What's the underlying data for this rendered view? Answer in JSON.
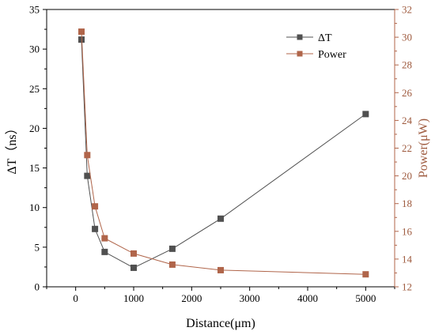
{
  "chart_data": {
    "type": "line",
    "xlabel": "Distance(μm)",
    "ylabel": "ΔT（ns）",
    "ylabel_right": "Power(μW)",
    "xlim": [
      -500,
      5500
    ],
    "ylim": [
      0,
      35
    ],
    "ylim_right": [
      12,
      32
    ],
    "x_ticks": [
      0,
      1000,
      2000,
      3000,
      4000,
      5000
    ],
    "y_ticks": [
      0,
      5,
      10,
      15,
      20,
      25,
      30,
      35
    ],
    "y_ticks_right": [
      12,
      14,
      16,
      18,
      20,
      22,
      24,
      26,
      28,
      30,
      32
    ],
    "legend_position": "top-right",
    "series": [
      {
        "name": "ΔT",
        "axis": "left",
        "color": "#505050",
        "x": [
          100,
          200,
          333,
          500,
          1000,
          1667,
          2500,
          5000
        ],
        "values": [
          31.2,
          14.0,
          7.3,
          4.4,
          2.4,
          4.8,
          8.6,
          21.8
        ]
      },
      {
        "name": "Power",
        "axis": "right",
        "color": "#b0654a",
        "x": [
          100,
          200,
          333,
          500,
          1000,
          1667,
          2500,
          5000
        ],
        "values": [
          30.4,
          21.5,
          17.8,
          15.5,
          14.4,
          13.6,
          13.2,
          12.9
        ]
      }
    ]
  }
}
